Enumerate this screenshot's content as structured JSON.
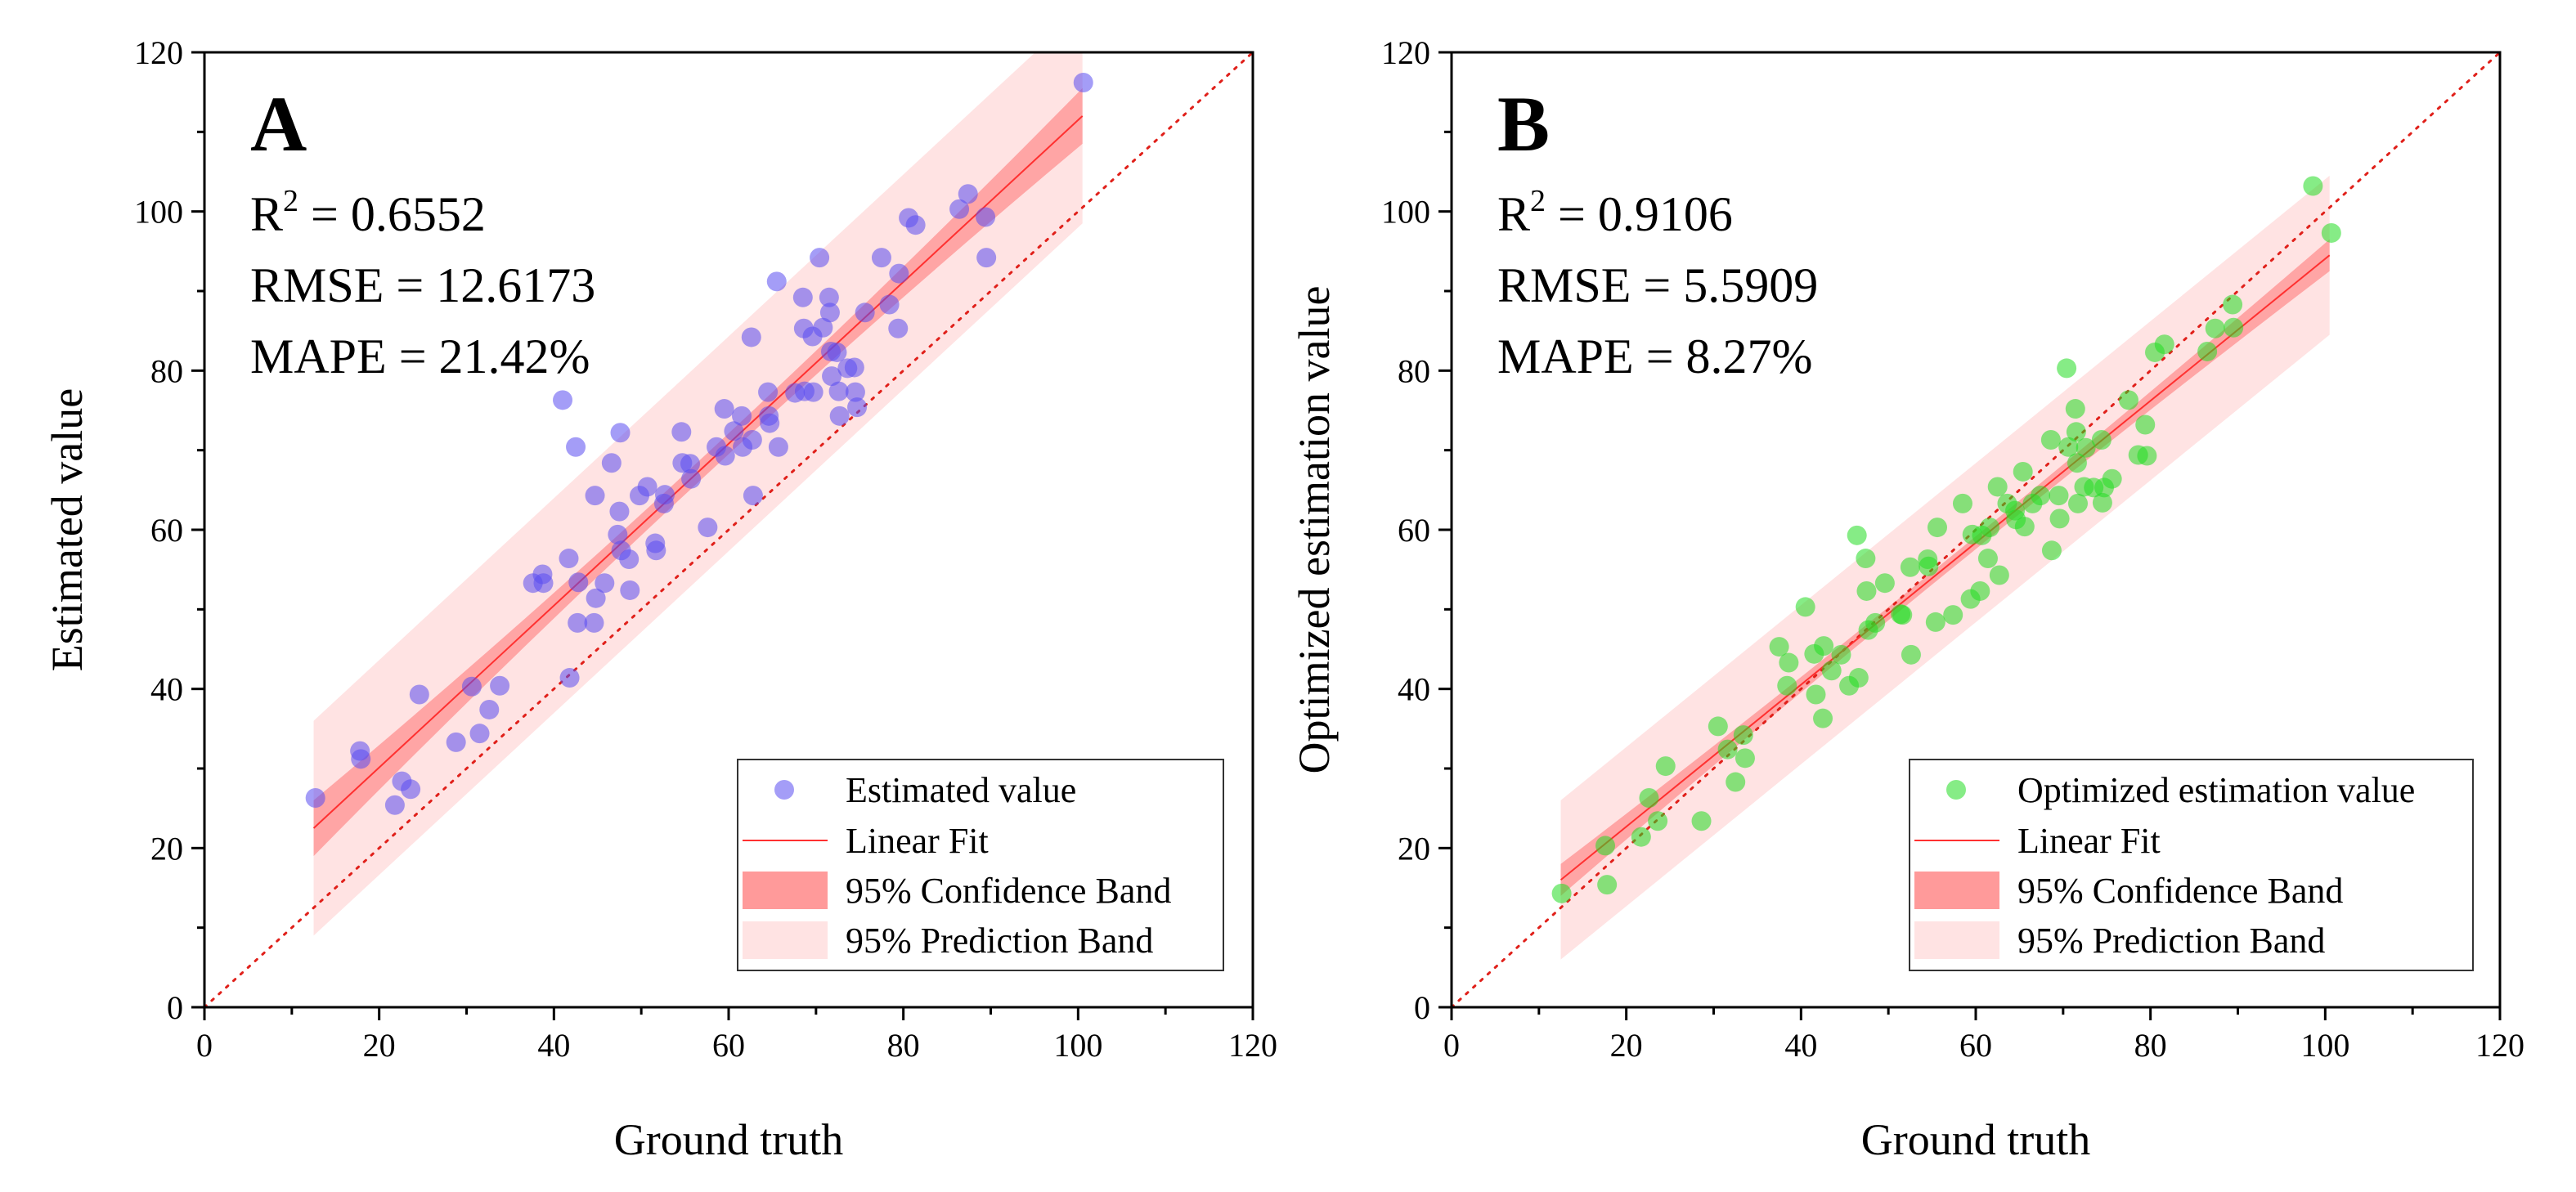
{
  "colors": {
    "fit_line": "#ff3030",
    "confidence_band": "#ff9a9a",
    "prediction_band": "#ffe3e3",
    "identity_line": "#e0201a",
    "axis": "#000000"
  },
  "chart_data": [
    {
      "type": "scatter",
      "panel_label": "A",
      "xlabel": "Ground truth",
      "ylabel": "Estimated value",
      "xlim": [
        0,
        120
      ],
      "ylim": [
        0,
        120
      ],
      "x_ticks": [
        0,
        20,
        40,
        60,
        80,
        100,
        120
      ],
      "y_ticks": [
        0,
        20,
        40,
        60,
        80,
        100,
        120
      ],
      "grid": false,
      "stats": {
        "r2_prefix": "R",
        "r2_sup": "2",
        "r2_value": " = 0.6552",
        "rmse": "RMSE = 12.6173",
        "mape": "MAPE = 21.42%"
      },
      "legend": {
        "placement": "bottom-right",
        "entries": [
          "Estimated value",
          "Linear Fit",
          "95% Confidence Band",
          "95% Prediction Band"
        ]
      },
      "point_color": "#5a4cf0",
      "fit": {
        "x_range": [
          12.5,
          100.5
        ],
        "y_at_start": 22.5,
        "y_at_end": 112.0
      },
      "confidence_band": {
        "half_width_ends": 3.5,
        "half_width_mid": 1.3
      },
      "prediction_band": {
        "half_width": 13.5
      },
      "points": [
        [
          12.7,
          26.3
        ],
        [
          17.8,
          32.2
        ],
        [
          17.9,
          31.2
        ],
        [
          21.8,
          25.4
        ],
        [
          22.6,
          28.4
        ],
        [
          23.6,
          27.4
        ],
        [
          24.6,
          39.3
        ],
        [
          28.8,
          33.3
        ],
        [
          30.6,
          40.3
        ],
        [
          31.5,
          34.4
        ],
        [
          32.6,
          37.4
        ],
        [
          33.8,
          40.4
        ],
        [
          37.6,
          53.3
        ],
        [
          38.7,
          54.4
        ],
        [
          38.8,
          53.3
        ],
        [
          41.0,
          76.3
        ],
        [
          41.7,
          56.4
        ],
        [
          41.8,
          41.4
        ],
        [
          42.5,
          70.4
        ],
        [
          42.7,
          48.3
        ],
        [
          42.8,
          53.4
        ],
        [
          44.6,
          48.3
        ],
        [
          44.7,
          64.3
        ],
        [
          44.8,
          51.4
        ],
        [
          45.8,
          53.3
        ],
        [
          46.6,
          68.4
        ],
        [
          47.3,
          59.4
        ],
        [
          47.5,
          62.3
        ],
        [
          47.6,
          72.2
        ],
        [
          47.7,
          57.4
        ],
        [
          48.6,
          56.3
        ],
        [
          48.7,
          52.4
        ],
        [
          49.8,
          64.3
        ],
        [
          50.7,
          65.4
        ],
        [
          51.6,
          58.3
        ],
        [
          51.7,
          57.4
        ],
        [
          52.6,
          63.3
        ],
        [
          52.7,
          64.4
        ],
        [
          54.6,
          72.3
        ],
        [
          54.7,
          68.4
        ],
        [
          55.6,
          68.3
        ],
        [
          55.7,
          66.4
        ],
        [
          57.6,
          60.3
        ],
        [
          58.6,
          70.4
        ],
        [
          59.5,
          75.2
        ],
        [
          59.6,
          69.3
        ],
        [
          60.6,
          72.4
        ],
        [
          61.5,
          74.3
        ],
        [
          61.6,
          70.4
        ],
        [
          62.6,
          84.2
        ],
        [
          62.8,
          64.3
        ],
        [
          62.7,
          71.3
        ],
        [
          64.5,
          77.3
        ],
        [
          64.6,
          74.3
        ],
        [
          64.7,
          73.4
        ],
        [
          65.5,
          91.2
        ],
        [
          65.7,
          70.4
        ],
        [
          67.6,
          77.2
        ],
        [
          68.5,
          89.2
        ],
        [
          68.6,
          85.3
        ],
        [
          68.7,
          77.4
        ],
        [
          69.6,
          84.3
        ],
        [
          69.7,
          77.3
        ],
        [
          70.4,
          94.2
        ],
        [
          70.8,
          85.4
        ],
        [
          71.5,
          89.2
        ],
        [
          71.6,
          87.3
        ],
        [
          71.7,
          82.4
        ],
        [
          71.8,
          79.3
        ],
        [
          72.4,
          82.3
        ],
        [
          72.6,
          77.4
        ],
        [
          72.7,
          74.3
        ],
        [
          73.6,
          80.3
        ],
        [
          74.4,
          80.4
        ],
        [
          74.5,
          77.3
        ],
        [
          74.7,
          75.4
        ],
        [
          75.6,
          87.3
        ],
        [
          77.5,
          94.2
        ],
        [
          78.4,
          88.3
        ],
        [
          79.4,
          85.3
        ],
        [
          79.5,
          92.2
        ],
        [
          80.6,
          99.2
        ],
        [
          81.4,
          98.3
        ],
        [
          86.4,
          100.3
        ],
        [
          87.4,
          102.2
        ],
        [
          89.4,
          99.3
        ],
        [
          89.5,
          94.2
        ],
        [
          100.6,
          116.2
        ]
      ]
    },
    {
      "type": "scatter",
      "panel_label": "B",
      "xlabel": "Ground truth",
      "ylabel": "Optimized estimation value",
      "xlim": [
        0,
        120
      ],
      "ylim": [
        0,
        120
      ],
      "x_ticks": [
        0,
        20,
        40,
        60,
        80,
        100,
        120
      ],
      "y_ticks": [
        0,
        20,
        40,
        60,
        80,
        100,
        120
      ],
      "grid": false,
      "stats": {
        "r2_prefix": "R",
        "r2_sup": "2",
        "r2_value": " = 0.9106",
        "rmse": "RMSE = 5.5909",
        "mape": "MAPE = 8.27%"
      },
      "legend": {
        "placement": "bottom-right",
        "entries": [
          "Optimized estimation value",
          "Linear Fit",
          "95% Confidence Band",
          "95% Prediction Band"
        ]
      },
      "point_color": "#22dd22",
      "fit": {
        "x_range": [
          12.5,
          100.5
        ],
        "y_at_start": 16.0,
        "y_at_end": 94.5
      },
      "confidence_band": {
        "half_width_ends": 2.0,
        "half_width_mid": 0.8
      },
      "prediction_band": {
        "half_width": 10.0
      },
      "points": [
        [
          12.6,
          14.3
        ],
        [
          17.6,
          20.3
        ],
        [
          17.8,
          15.4
        ],
        [
          21.7,
          21.4
        ],
        [
          22.6,
          26.3
        ],
        [
          23.6,
          23.4
        ],
        [
          24.5,
          30.3
        ],
        [
          28.6,
          23.4
        ],
        [
          30.5,
          35.3
        ],
        [
          31.6,
          32.4
        ],
        [
          32.5,
          28.3
        ],
        [
          33.4,
          34.2
        ],
        [
          33.6,
          31.3
        ],
        [
          37.5,
          45.3
        ],
        [
          38.4,
          40.4
        ],
        [
          38.6,
          43.3
        ],
        [
          40.5,
          50.3
        ],
        [
          41.5,
          44.4
        ],
        [
          41.7,
          39.3
        ],
        [
          42.5,
          36.3
        ],
        [
          42.6,
          45.4
        ],
        [
          43.5,
          42.3
        ],
        [
          44.6,
          44.3
        ],
        [
          45.5,
          40.4
        ],
        [
          46.4,
          59.3
        ],
        [
          46.6,
          41.4
        ],
        [
          47.4,
          56.4
        ],
        [
          47.5,
          52.3
        ],
        [
          47.7,
          47.4
        ],
        [
          48.5,
          48.3
        ],
        [
          49.6,
          53.3
        ],
        [
          51.4,
          49.4
        ],
        [
          51.6,
          49.3
        ],
        [
          52.5,
          55.3
        ],
        [
          52.6,
          44.3
        ],
        [
          54.5,
          56.3
        ],
        [
          54.6,
          55.4
        ],
        [
          55.4,
          48.4
        ],
        [
          55.6,
          60.3
        ],
        [
          57.4,
          49.3
        ],
        [
          58.5,
          63.3
        ],
        [
          59.4,
          51.3
        ],
        [
          59.6,
          59.4
        ],
        [
          60.5,
          52.3
        ],
        [
          60.7,
          59.3
        ],
        [
          61.4,
          56.4
        ],
        [
          61.6,
          60.3
        ],
        [
          62.5,
          65.4
        ],
        [
          62.7,
          54.3
        ],
        [
          63.6,
          63.3
        ],
        [
          64.5,
          62.4
        ],
        [
          64.6,
          61.3
        ],
        [
          65.4,
          67.3
        ],
        [
          65.6,
          60.4
        ],
        [
          66.5,
          63.3
        ],
        [
          67.4,
          64.3
        ],
        [
          68.6,
          71.3
        ],
        [
          68.7,
          57.4
        ],
        [
          69.5,
          64.3
        ],
        [
          69.6,
          61.4
        ],
        [
          70.4,
          80.3
        ],
        [
          70.6,
          70.4
        ],
        [
          71.4,
          75.2
        ],
        [
          71.5,
          72.3
        ],
        [
          71.6,
          68.4
        ],
        [
          71.7,
          63.3
        ],
        [
          72.4,
          65.4
        ],
        [
          72.6,
          70.3
        ],
        [
          73.5,
          65.3
        ],
        [
          74.4,
          71.3
        ],
        [
          74.5,
          63.4
        ],
        [
          74.7,
          65.3
        ],
        [
          75.6,
          66.4
        ],
        [
          77.5,
          76.3
        ],
        [
          78.6,
          69.4
        ],
        [
          79.4,
          73.2
        ],
        [
          79.6,
          69.3
        ],
        [
          80.5,
          82.3
        ],
        [
          81.6,
          83.3
        ],
        [
          86.5,
          82.4
        ],
        [
          87.4,
          85.3
        ],
        [
          89.4,
          88.3
        ],
        [
          89.5,
          85.4
        ],
        [
          98.6,
          103.2
        ],
        [
          100.7,
          97.3
        ]
      ]
    }
  ]
}
